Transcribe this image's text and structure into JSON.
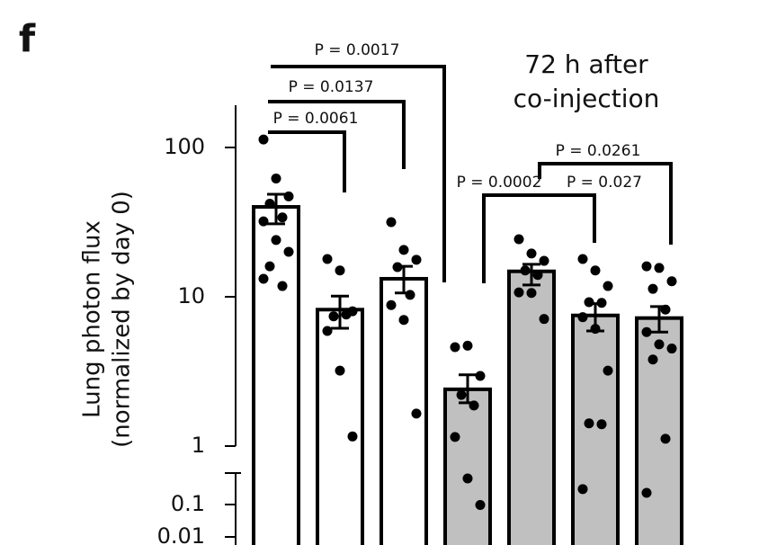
{
  "chart_data": {
    "type": "bar",
    "panel_label": "f",
    "title": [
      "72 h after",
      "co-injection"
    ],
    "ylabel": [
      "Lung photon flux",
      "(normalized by day 0)"
    ],
    "log_scale": true,
    "ylim": [
      0.01,
      200
    ],
    "yticks": [
      0.01,
      0.1,
      1,
      10,
      100
    ],
    "axis_break": [
      0.1,
      1
    ],
    "categories": [
      null,
      null,
      null,
      null,
      null,
      null,
      null
    ],
    "colors": [
      "#ffffff",
      "#ffffff",
      "#ffffff",
      "#c0c0c0",
      "#c0c0c0",
      "#c0c0c0",
      "#c0c0c0"
    ],
    "values": [
      40,
      8.2,
      13.2,
      2.4,
      14.8,
      7.5,
      7.2
    ],
    "error_upper": [
      48.6,
      10.1,
      16,
      3.0,
      16.5,
      9.0,
      8.6
    ],
    "error_lower": [
      30.8,
      6.15,
      10.6,
      1.95,
      12,
      5.9,
      5.8
    ],
    "points": [
      [
        113,
        62,
        47,
        42,
        34,
        32,
        24,
        20,
        16,
        11.8,
        13.2
      ],
      [
        17.9,
        15,
        8.0,
        7.4,
        7.6,
        5.9,
        3.2,
        1.16
      ],
      [
        31.6,
        20.6,
        17.7,
        15.8,
        10.3,
        8.8,
        7.0,
        1.65
      ],
      [
        4.6,
        4.7,
        2.95,
        2.2,
        1.87,
        1.15,
        0.64,
        0.097
      ],
      [
        24.3,
        19.5,
        17.4,
        15,
        14,
        10.7,
        10.6,
        7.1
      ],
      [
        17.9,
        15,
        11.8,
        9.2,
        9.1,
        7.3,
        6.1,
        3.2,
        1.42,
        1.4,
        0.3
      ],
      [
        16,
        15.6,
        12.7,
        11.3,
        8.2,
        5.8,
        4.8,
        4.5,
        3.8,
        1.12,
        0.23
      ]
    ],
    "annotations": [
      "P = 0.0017",
      "P = 0.0137",
      "P = 0.0061",
      "P = 0.0002",
      "P = 0.027",
      "P = 0.0261"
    ]
  }
}
